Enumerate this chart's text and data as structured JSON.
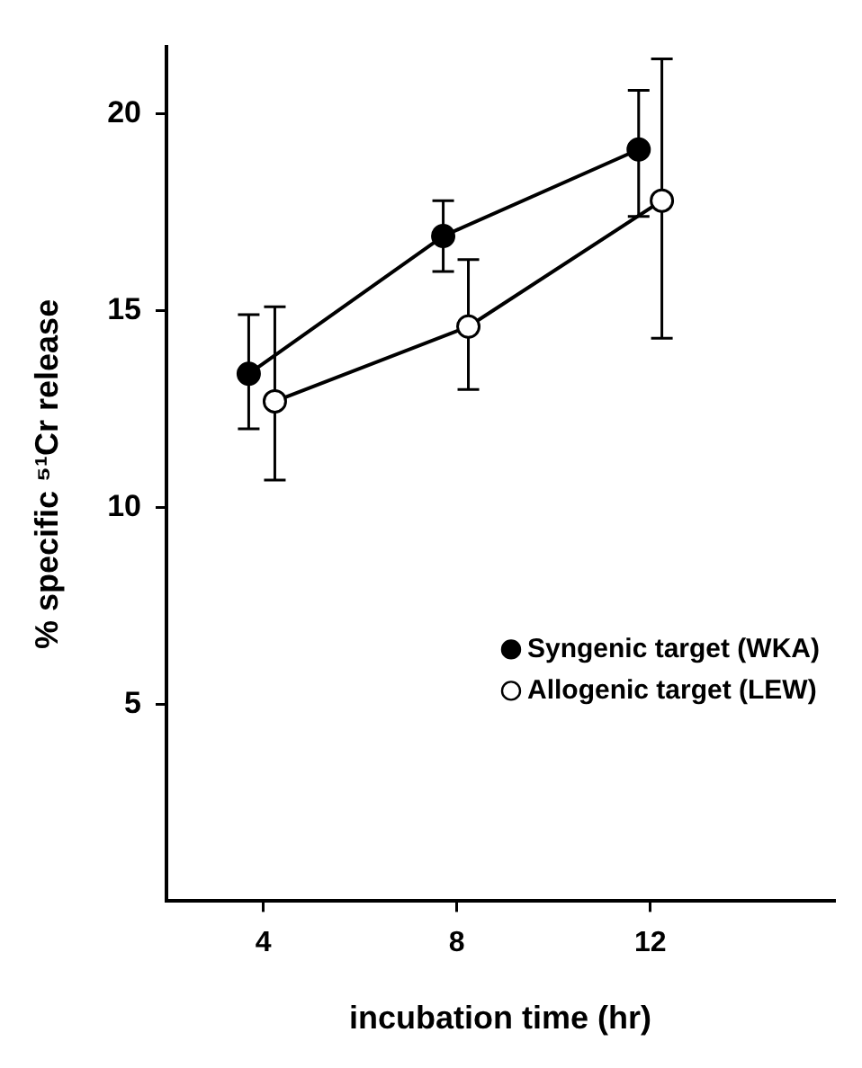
{
  "chart_data": {
    "type": "line",
    "xlabel": "incubation time (hr)",
    "ylabel": "% specific ⁵¹Cr release",
    "xlim": [
      2,
      15.8
    ],
    "xticks": [
      4,
      8,
      12
    ],
    "ylim": [
      0,
      21.7
    ],
    "yticks": [
      5,
      10,
      15,
      20
    ],
    "grid": false,
    "legend": "bottom right",
    "marker": "circle",
    "line_style": "solid",
    "series": [
      {
        "name": "Syngenic target (WKA)",
        "color": "#000000",
        "x": [
          3.7,
          7.72,
          11.76
        ],
        "values": [
          13.4,
          16.9,
          19.1
        ],
        "errors": [
          [
            12.0,
            14.9
          ],
          [
            16.0,
            17.8
          ],
          [
            17.4,
            20.6
          ]
        ]
      },
      {
        "name": "Allogenic target (LEW)",
        "color": "#000000",
        "x": [
          4.24,
          8.24,
          12.24
        ],
        "values": [
          12.7,
          14.6,
          17.8
        ],
        "errors": [
          [
            10.7,
            15.1
          ],
          [
            13.0,
            16.3
          ],
          [
            14.3,
            21.4
          ]
        ]
      }
    ]
  }
}
